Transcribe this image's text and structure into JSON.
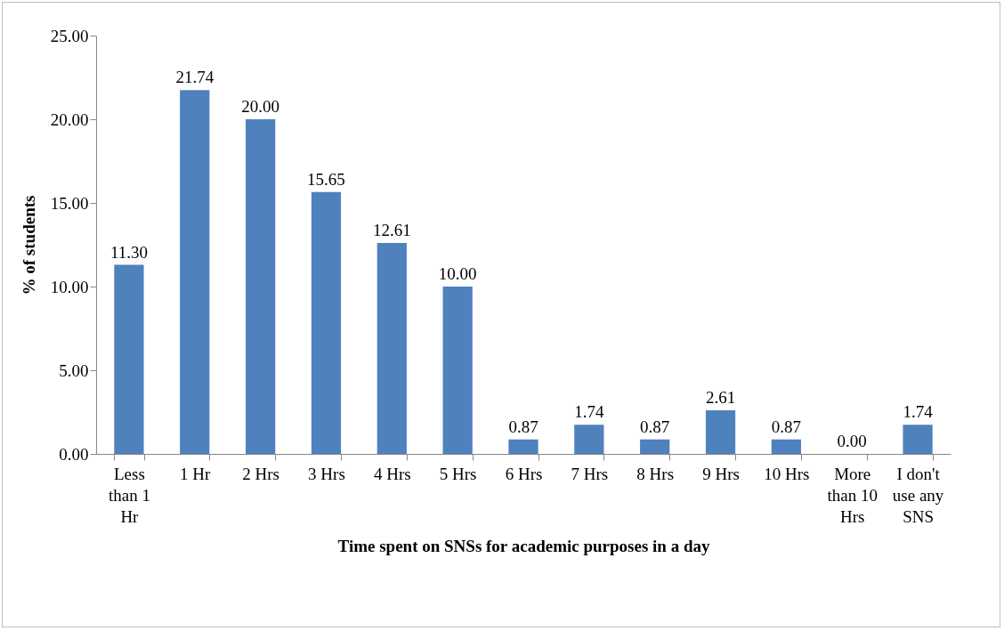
{
  "chart_data": {
    "type": "bar",
    "xlabel": "Time spent on SNSs for academic purposes in a day",
    "ylabel": "% of students",
    "categories": [
      "Less than 1 Hr",
      "1 Hr",
      "2 Hrs",
      "3 Hrs",
      "4 Hrs",
      "5 Hrs",
      "6 Hrs",
      "7 Hrs",
      "8 Hrs",
      "9 Hrs",
      "10 Hrs",
      "More than 10 Hrs",
      "I don't use any SNS"
    ],
    "values": [
      11.3,
      21.74,
      20.0,
      15.65,
      12.61,
      10.0,
      0.87,
      1.74,
      0.87,
      2.61,
      0.87,
      0.0,
      1.74
    ],
    "color": "#4f81bd",
    "ylim": [
      0,
      25
    ],
    "yticks": [
      {
        "value": 0,
        "label": "0.00"
      },
      {
        "value": 5,
        "label": "5.00"
      },
      {
        "value": 10,
        "label": "10.00"
      },
      {
        "value": 15,
        "label": "15.00"
      },
      {
        "value": 20,
        "label": "20.00"
      },
      {
        "value": 25,
        "label": "25.00"
      }
    ],
    "value_labels": [
      "11.30",
      "21.74",
      "20.00",
      "15.65",
      "12.61",
      "10.00",
      "0.87",
      "1.74",
      "0.87",
      "2.61",
      "0.87",
      "0.00",
      "1.74"
    ],
    "grid": false
  }
}
